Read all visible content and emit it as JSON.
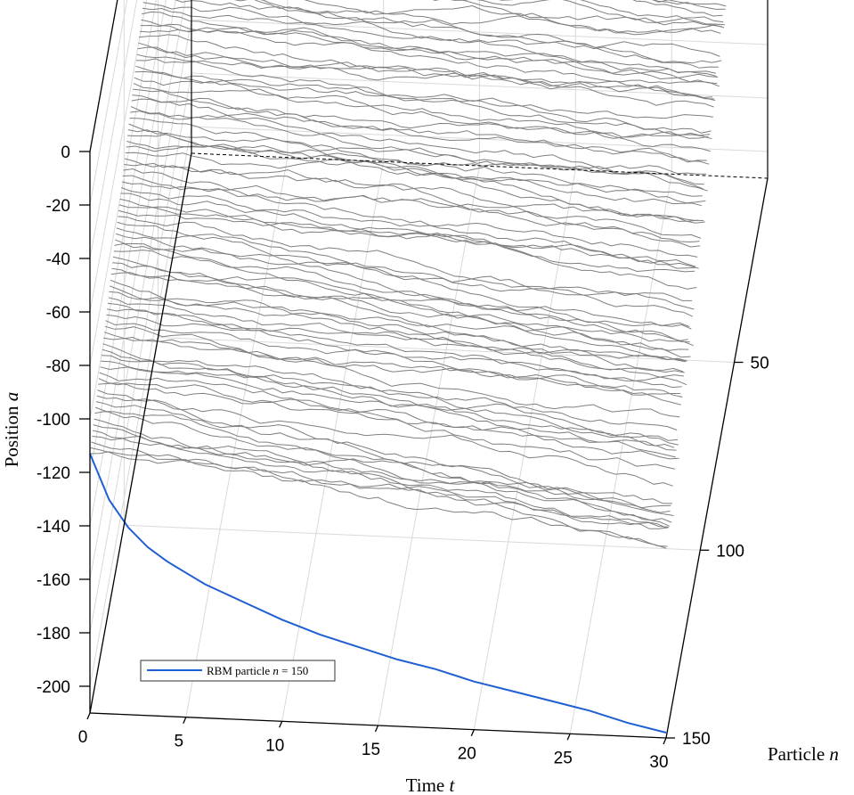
{
  "chart_data": {
    "type": "line",
    "title": "",
    "xlabel": "Time",
    "xlabel_var": "t",
    "ylabel": "Particle",
    "ylabel_var": "n",
    "zlabel": "Position",
    "zlabel_var": "a",
    "x_ticks": [
      "0",
      "5",
      "10",
      "15",
      "20",
      "25",
      "30"
    ],
    "y_ticks": [
      "50",
      "100",
      "150"
    ],
    "z_ticks": [
      "0",
      "-20",
      "-40",
      "-60",
      "-80",
      "-100",
      "-120",
      "-140",
      "-160",
      "-180",
      "-200"
    ],
    "xlim": [
      0,
      30
    ],
    "ylim": [
      1,
      150
    ],
    "zlim": [
      -210,
      0
    ],
    "grid": true,
    "legend_position": "lower-left",
    "series": [
      {
        "name": "RBM particle",
        "name_var": "n",
        "name_eq": "= 150",
        "color": "#1f5fd1",
        "x": [
          0,
          1,
          2,
          3,
          4,
          5,
          6,
          8,
          10,
          12,
          14,
          16,
          18,
          20,
          22,
          24,
          26,
          28,
          30
        ],
        "y_values": [
          -113,
          -130,
          -140,
          -147,
          -152,
          -156,
          -160,
          -166,
          -172,
          -177,
          -181,
          -185,
          -188,
          -192,
          -195,
          -198,
          -201,
          -205,
          -208
        ]
      }
    ],
    "background_particles": {
      "count": 150,
      "color": "#7f7f7f",
      "description_of_envelope": "paths start fanned from a near-zero position and spread downward with time"
    }
  }
}
